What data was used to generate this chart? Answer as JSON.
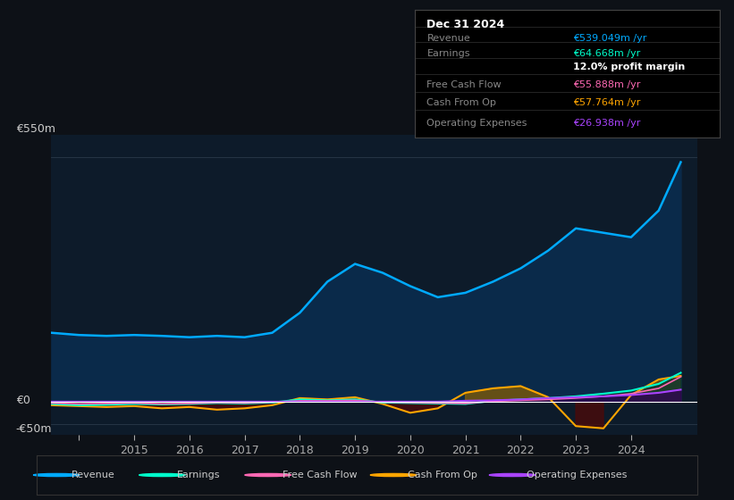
{
  "bg_color": "#0d1117",
  "plot_bg_color": "#0d1b2a",
  "grid_color": "#2a3a4a",
  "zero_line_color": "#ffffff",
  "y_label_550": "€550m",
  "y_label_0": "€0",
  "y_label_neg50": "-€50m",
  "ylim": [
    -75,
    600
  ],
  "yticks": [
    -50,
    0,
    550
  ],
  "revenue": {
    "color": "#00aaff",
    "fill_color": "#0a2a4a",
    "label": "Revenue",
    "data_x": [
      2013.5,
      2014.0,
      2014.5,
      2015.0,
      2015.5,
      2016.0,
      2016.5,
      2017.0,
      2017.5,
      2018.0,
      2018.5,
      2019.0,
      2019.5,
      2020.0,
      2020.5,
      2021.0,
      2021.5,
      2022.0,
      2022.5,
      2023.0,
      2023.5,
      2024.0,
      2024.5,
      2024.9
    ],
    "data_y": [
      155,
      150,
      148,
      150,
      148,
      145,
      148,
      145,
      155,
      200,
      270,
      310,
      290,
      260,
      235,
      245,
      270,
      300,
      340,
      390,
      380,
      370,
      430,
      539
    ]
  },
  "earnings": {
    "color": "#00ffcc",
    "label": "Earnings",
    "data_x": [
      2013.5,
      2014.0,
      2014.5,
      2015.0,
      2015.5,
      2016.0,
      2016.5,
      2017.0,
      2017.5,
      2018.0,
      2018.5,
      2019.0,
      2019.5,
      2020.0,
      2020.5,
      2021.0,
      2021.5,
      2022.0,
      2022.5,
      2023.0,
      2023.5,
      2024.0,
      2024.5,
      2024.9
    ],
    "data_y": [
      -5,
      -8,
      -7,
      -5,
      -6,
      -5,
      -3,
      -4,
      -2,
      5,
      3,
      5,
      -2,
      -3,
      -4,
      -5,
      2,
      5,
      8,
      12,
      18,
      25,
      40,
      65
    ]
  },
  "free_cash_flow": {
    "color": "#ff69b4",
    "label": "Free Cash Flow",
    "data_x": [
      2013.5,
      2014.0,
      2014.5,
      2015.0,
      2015.5,
      2016.0,
      2016.5,
      2017.0,
      2017.5,
      2018.0,
      2018.5,
      2019.0,
      2019.5,
      2020.0,
      2020.5,
      2021.0,
      2021.5,
      2022.0,
      2022.5,
      2023.0,
      2023.5,
      2024.0,
      2024.5,
      2024.9
    ],
    "data_y": [
      -3,
      -5,
      -4,
      -3,
      -5,
      -4,
      -2,
      -3,
      -1,
      2,
      2,
      3,
      -1,
      -2,
      -3,
      -4,
      1,
      3,
      5,
      8,
      12,
      18,
      30,
      56
    ]
  },
  "cash_from_op": {
    "color": "#ffa500",
    "label": "Cash From Op",
    "data_x": [
      2013.5,
      2014.0,
      2014.5,
      2015.0,
      2015.5,
      2016.0,
      2016.5,
      2017.0,
      2017.5,
      2018.0,
      2018.5,
      2019.0,
      2019.5,
      2020.0,
      2020.5,
      2021.0,
      2021.5,
      2022.0,
      2022.5,
      2023.0,
      2023.5,
      2024.0,
      2024.5,
      2024.9
    ],
    "data_y": [
      -8,
      -10,
      -12,
      -10,
      -15,
      -12,
      -18,
      -15,
      -8,
      8,
      5,
      10,
      -5,
      -25,
      -15,
      20,
      30,
      35,
      10,
      -55,
      -60,
      15,
      50,
      58
    ]
  },
  "operating_expenses": {
    "color": "#aa44ff",
    "label": "Operating Expenses",
    "data_x": [
      2013.5,
      2014.0,
      2014.5,
      2015.0,
      2015.5,
      2016.0,
      2016.5,
      2017.0,
      2017.5,
      2018.0,
      2018.5,
      2019.0,
      2019.5,
      2020.0,
      2020.5,
      2021.0,
      2021.5,
      2022.0,
      2022.5,
      2023.0,
      2023.5,
      2024.0,
      2024.5,
      2024.9
    ],
    "data_y": [
      0,
      0,
      0,
      0,
      0,
      0,
      0,
      0,
      0,
      0,
      0,
      0,
      0,
      0,
      0,
      2,
      3,
      5,
      8,
      10,
      12,
      15,
      20,
      27
    ]
  },
  "tooltip": {
    "title": "Dec 31 2024",
    "title_color": "#ffffff",
    "rows": [
      {
        "label": "Revenue",
        "value": "€539.049m /yr",
        "value_color": "#00aaff"
      },
      {
        "label": "Earnings",
        "value": "€64.668m /yr",
        "value_color": "#00ffcc"
      },
      {
        "label": "",
        "value": "12.0% profit margin",
        "value_color": "#ffffff"
      },
      {
        "label": "Free Cash Flow",
        "value": "€55.888m /yr",
        "value_color": "#ff69b4"
      },
      {
        "label": "Cash From Op",
        "value": "€57.764m /yr",
        "value_color": "#ffa500"
      },
      {
        "label": "Operating Expenses",
        "value": "€26.938m /yr",
        "value_color": "#aa44ff"
      }
    ]
  },
  "legend_items": [
    {
      "color": "#00aaff",
      "label": "Revenue"
    },
    {
      "color": "#00ffcc",
      "label": "Earnings"
    },
    {
      "color": "#ff69b4",
      "label": "Free Cash Flow"
    },
    {
      "color": "#ffa500",
      "label": "Cash From Op"
    },
    {
      "color": "#aa44ff",
      "label": "Operating Expenses"
    }
  ]
}
